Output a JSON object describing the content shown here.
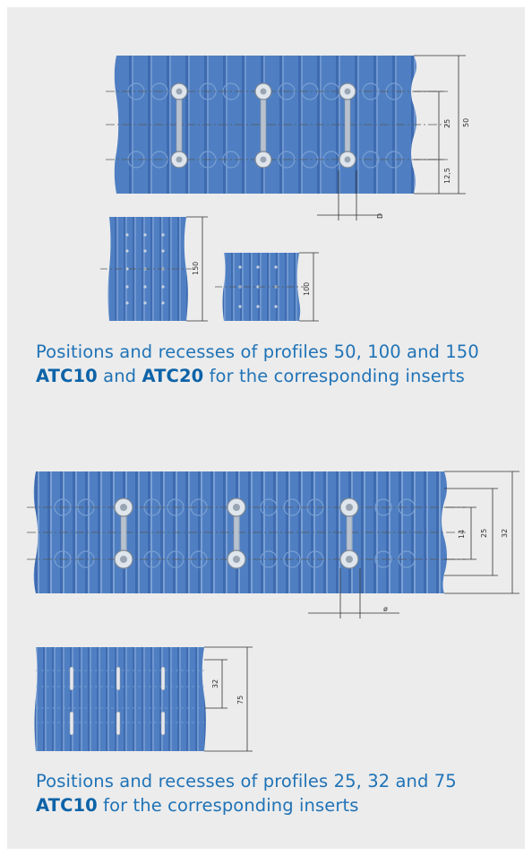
{
  "colors": {
    "belt": "#4f7fc2",
    "belt_dark": "#3f6db0",
    "rib_light": "#7aa0d4",
    "dimension_line": "#333333",
    "caption": "#1f73b7",
    "panel_bg": "#ececec"
  },
  "figure1": {
    "main_view": {
      "dimensions": [
        "25",
        "50",
        "12,5",
        "D"
      ],
      "insert_count": 3
    },
    "side_view_a": {
      "dimension": "150"
    },
    "side_view_b": {
      "dimension": "100"
    },
    "caption": {
      "line1": "Positions and recesses of profiles 50, 100 and 150",
      "code_a": "ATC10",
      "joiner": "and",
      "code_b": "ATC20",
      "tail": "for the corresponding inserts"
    }
  },
  "figure2": {
    "main_view": {
      "dimensions": [
        "14",
        "25",
        "32",
        "ø"
      ],
      "insert_count": 3
    },
    "side_view": {
      "dimensions": [
        "32",
        "75"
      ]
    },
    "caption": {
      "line1": "Positions and recesses of profiles 25, 32 and 75",
      "code_a": "ATC10",
      "tail": "for the corresponding inserts"
    }
  }
}
